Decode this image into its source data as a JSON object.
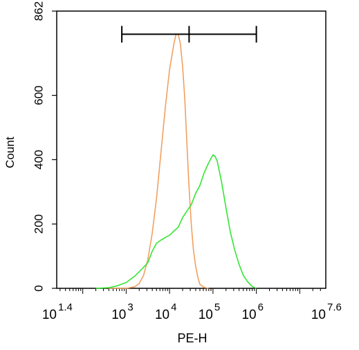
{
  "chart_data": {
    "type": "line",
    "xlabel": "PE-H",
    "ylabel": "Count",
    "x_scale": "log10",
    "xlim": [
      1.4,
      7.6
    ],
    "ylim": [
      0,
      862
    ],
    "y_ticks": [
      0,
      200,
      400,
      600,
      862
    ],
    "x_ticks": [
      {
        "base": "10",
        "exp": "1.4",
        "value": 1.4
      },
      {
        "base": "10",
        "exp": "3",
        "value": 3
      },
      {
        "base": "10",
        "exp": "4",
        "value": 4
      },
      {
        "base": "10",
        "exp": "5",
        "value": 5
      },
      {
        "base": "10",
        "exp": "6",
        "value": 6
      },
      {
        "base": "10",
        "exp": "7.6",
        "value": 7.6
      }
    ],
    "gate": {
      "x_start": 2.9,
      "x_mid": 4.45,
      "x_end": 6.0,
      "y": 790
    },
    "series": [
      {
        "color": "#F0A060",
        "points": [
          [
            2.6,
            0
          ],
          [
            2.8,
            0
          ],
          [
            3.0,
            0
          ],
          [
            3.2,
            5
          ],
          [
            3.3,
            15
          ],
          [
            3.4,
            40
          ],
          [
            3.5,
            90
          ],
          [
            3.6,
            170
          ],
          [
            3.7,
            280
          ],
          [
            3.8,
            420
          ],
          [
            3.9,
            560
          ],
          [
            4.0,
            680
          ],
          [
            4.1,
            760
          ],
          [
            4.15,
            790
          ],
          [
            4.2,
            790
          ],
          [
            4.25,
            760
          ],
          [
            4.3,
            690
          ],
          [
            4.35,
            590
          ],
          [
            4.4,
            450
          ],
          [
            4.45,
            310
          ],
          [
            4.5,
            200
          ],
          [
            4.55,
            120
          ],
          [
            4.6,
            70
          ],
          [
            4.65,
            35
          ],
          [
            4.7,
            12
          ],
          [
            4.8,
            3
          ],
          [
            4.9,
            0
          ]
        ]
      },
      {
        "color": "#33E633",
        "points": [
          [
            2.3,
            0
          ],
          [
            2.6,
            2
          ],
          [
            2.8,
            8
          ],
          [
            3.0,
            18
          ],
          [
            3.2,
            38
          ],
          [
            3.4,
            65
          ],
          [
            3.5,
            80
          ],
          [
            3.6,
            115
          ],
          [
            3.7,
            140
          ],
          [
            3.8,
            150
          ],
          [
            3.9,
            158
          ],
          [
            4.0,
            165
          ],
          [
            4.1,
            178
          ],
          [
            4.2,
            190
          ],
          [
            4.3,
            220
          ],
          [
            4.4,
            240
          ],
          [
            4.5,
            260
          ],
          [
            4.6,
            295
          ],
          [
            4.7,
            320
          ],
          [
            4.8,
            360
          ],
          [
            4.9,
            390
          ],
          [
            5.0,
            415
          ],
          [
            5.05,
            410
          ],
          [
            5.1,
            395
          ],
          [
            5.2,
            330
          ],
          [
            5.3,
            250
          ],
          [
            5.4,
            175
          ],
          [
            5.5,
            120
          ],
          [
            5.6,
            75
          ],
          [
            5.7,
            40
          ],
          [
            5.8,
            20
          ],
          [
            5.9,
            6
          ],
          [
            6.0,
            0
          ]
        ]
      }
    ]
  }
}
